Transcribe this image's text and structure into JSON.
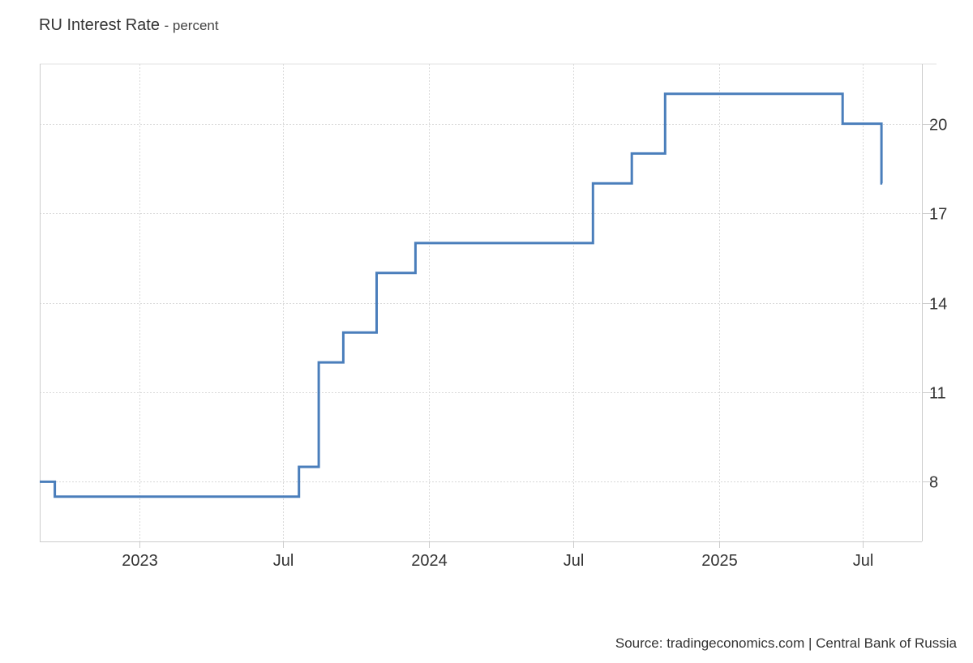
{
  "header": {
    "title": "RU Interest Rate",
    "subtitle": "- percent"
  },
  "footer": {
    "source": "Source: tradingeconomics.com | Central Bank of Russia"
  },
  "chart_data": {
    "type": "line",
    "step": true,
    "title": "RU Interest Rate",
    "subtitle": "percent",
    "xlabel": "",
    "ylabel": "",
    "xlim": [
      "2022-08-28",
      "2025-09-14"
    ],
    "ylim": [
      6,
      22
    ],
    "grid": true,
    "line_color": "#4a7ebb",
    "y_axis_side": "right",
    "x_ticks": [
      {
        "date": "2023-01-01",
        "label": "2023"
      },
      {
        "date": "2023-07-01",
        "label": "Jul"
      },
      {
        "date": "2024-01-01",
        "label": "2024"
      },
      {
        "date": "2024-07-01",
        "label": "Jul"
      },
      {
        "date": "2025-01-01",
        "label": "2025"
      },
      {
        "date": "2025-07-01",
        "label": "Jul"
      }
    ],
    "y_ticks": [
      8,
      11,
      14,
      17,
      20
    ],
    "series": [
      {
        "points": [
          {
            "date": "2022-08-28",
            "value": 8
          },
          {
            "date": "2022-09-16",
            "value": 7.5
          },
          {
            "date": "2023-07-21",
            "value": 8.5
          },
          {
            "date": "2023-08-15",
            "value": 12
          },
          {
            "date": "2023-09-15",
            "value": 13
          },
          {
            "date": "2023-10-27",
            "value": 15
          },
          {
            "date": "2023-12-15",
            "value": 16
          },
          {
            "date": "2024-07-26",
            "value": 18
          },
          {
            "date": "2024-09-13",
            "value": 19
          },
          {
            "date": "2024-10-25",
            "value": 21
          },
          {
            "date": "2025-06-06",
            "value": 20
          },
          {
            "date": "2025-07-25",
            "value": 18
          },
          {
            "date": "2025-07-26",
            "value": 18
          }
        ]
      }
    ]
  }
}
